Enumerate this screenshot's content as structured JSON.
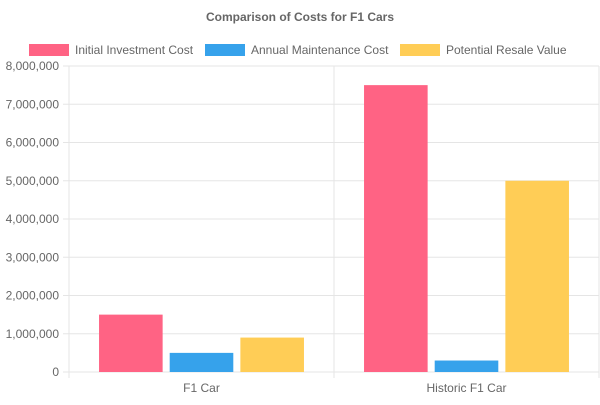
{
  "chart_data": {
    "type": "bar",
    "title": "Comparison of Costs for F1 Cars",
    "xlabel": "",
    "ylabel": "",
    "categories": [
      "F1 Car",
      "Historic F1 Car"
    ],
    "series": [
      {
        "name": "Initial Investment Cost",
        "values": [
          1500000,
          7500000
        ],
        "color": "#ff6384"
      },
      {
        "name": "Annual Maintenance Cost",
        "values": [
          500000,
          300000
        ],
        "color": "#36a2eb"
      },
      {
        "name": "Potential Resale Value",
        "values": [
          900000,
          5000000
        ],
        "color": "#ffcd56"
      }
    ],
    "ylim": [
      0,
      8000000
    ],
    "yticks": [
      "0",
      "1,000,000",
      "2,000,000",
      "3,000,000",
      "4,000,000",
      "5,000,000",
      "6,000,000",
      "7,000,000",
      "8,000,000"
    ],
    "legend_position": "top",
    "grid": true
  }
}
